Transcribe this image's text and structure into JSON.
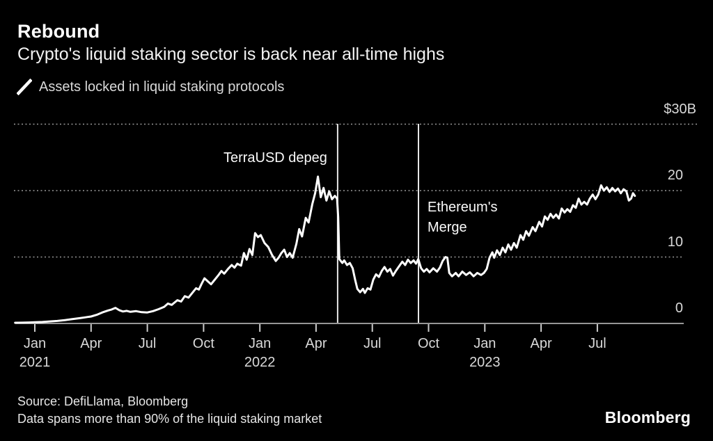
{
  "header": {
    "title": "Rebound",
    "subtitle": "Crypto's liquid staking sector is back near all-time highs",
    "legend": {
      "icon": "line-series-mark",
      "label": "Assets locked in liquid staking protocols"
    }
  },
  "footer": {
    "source_line": "Source: DefiLlama, Bloomberg",
    "note_line": "Data spans more than 90% of the liquid staking market",
    "brand": "Bloomberg"
  },
  "colors": {
    "background": "#000000",
    "text_primary": "#ffffff",
    "text_secondary": "#d9d9d9",
    "grid": "#9a9a9a",
    "axis": "#c8c8c8",
    "series_line": "#ffffff",
    "annotation_line": "#e8e8e8"
  },
  "chart_data": {
    "type": "line",
    "title": "Rebound",
    "subtitle": "Crypto's liquid staking sector is back near all-time highs",
    "x_unit": "months since Jan 2021",
    "ylabel": "Assets locked ($B)",
    "ylim": [
      0,
      30
    ],
    "xlim": [
      -1.05,
      34.6
    ],
    "grid": "horizontal-dotted",
    "legend_position": "top-left",
    "y_ticks": [
      {
        "value": 30,
        "label": "$30B"
      },
      {
        "value": 20,
        "label": "20"
      },
      {
        "value": 10,
        "label": "10"
      },
      {
        "value": 0,
        "label": "0"
      }
    ],
    "x_ticks": [
      {
        "m": 0,
        "label": "Jan",
        "year": "2021"
      },
      {
        "m": 3,
        "label": "Apr"
      },
      {
        "m": 6,
        "label": "Jul"
      },
      {
        "m": 9,
        "label": "Oct"
      },
      {
        "m": 12,
        "label": "Jan",
        "year": "2022"
      },
      {
        "m": 15,
        "label": "Apr"
      },
      {
        "m": 18,
        "label": "Jul"
      },
      {
        "m": 21,
        "label": "Oct"
      },
      {
        "m": 24,
        "label": "Jan",
        "year": "2023"
      },
      {
        "m": 27,
        "label": "Apr"
      },
      {
        "m": 30,
        "label": "Jul"
      }
    ],
    "annotations": [
      {
        "type": "vline",
        "m": 16.15,
        "label_lines": [
          "TerraUSD depeg"
        ],
        "side": "left",
        "label_top": 213
      },
      {
        "type": "vline",
        "m": 20.46,
        "label_lines": [
          "Ethereum's",
          "Merge"
        ],
        "side": "right",
        "label_top": 284
      }
    ],
    "series": [
      {
        "name": "Assets locked in liquid staking protocols",
        "color": "#ffffff",
        "points": [
          [
            -1.05,
            0.1
          ],
          [
            -0.7,
            0.12
          ],
          [
            -0.3,
            0.15
          ],
          [
            0,
            0.18
          ],
          [
            0.4,
            0.22
          ],
          [
            0.8,
            0.3
          ],
          [
            1.2,
            0.38
          ],
          [
            1.6,
            0.5
          ],
          [
            2,
            0.65
          ],
          [
            2.4,
            0.8
          ],
          [
            2.7,
            0.92
          ],
          [
            3,
            1.05
          ],
          [
            3.3,
            1.3
          ],
          [
            3.6,
            1.65
          ],
          [
            3.9,
            1.95
          ],
          [
            4.1,
            2.1
          ],
          [
            4.3,
            2.35
          ],
          [
            4.5,
            2.0
          ],
          [
            4.7,
            1.8
          ],
          [
            4.9,
            1.9
          ],
          [
            5.1,
            1.75
          ],
          [
            5.4,
            1.85
          ],
          [
            5.7,
            1.7
          ],
          [
            6,
            1.65
          ],
          [
            6.3,
            1.85
          ],
          [
            6.6,
            2.15
          ],
          [
            6.9,
            2.5
          ],
          [
            7.1,
            3.0
          ],
          [
            7.3,
            2.8
          ],
          [
            7.6,
            3.5
          ],
          [
            7.8,
            3.3
          ],
          [
            8,
            4.1
          ],
          [
            8.2,
            3.9
          ],
          [
            8.4,
            4.6
          ],
          [
            8.6,
            5.3
          ],
          [
            8.75,
            5.1
          ],
          [
            8.9,
            6.0
          ],
          [
            9.05,
            6.8
          ],
          [
            9.2,
            6.4
          ],
          [
            9.4,
            5.9
          ],
          [
            9.6,
            6.6
          ],
          [
            9.8,
            7.3
          ],
          [
            9.95,
            7.9
          ],
          [
            10.1,
            7.5
          ],
          [
            10.3,
            8.2
          ],
          [
            10.5,
            8.8
          ],
          [
            10.65,
            8.4
          ],
          [
            10.8,
            9.0
          ],
          [
            11,
            8.7
          ],
          [
            11.15,
            10.6
          ],
          [
            11.3,
            9.6
          ],
          [
            11.45,
            11.2
          ],
          [
            11.6,
            10.3
          ],
          [
            11.75,
            13.6
          ],
          [
            11.9,
            13.0
          ],
          [
            12.05,
            13.3
          ],
          [
            12.25,
            12.1
          ],
          [
            12.45,
            11.5
          ],
          [
            12.65,
            10.3
          ],
          [
            12.85,
            9.4
          ],
          [
            13,
            9.9
          ],
          [
            13.15,
            10.6
          ],
          [
            13.3,
            11.1
          ],
          [
            13.45,
            10.0
          ],
          [
            13.6,
            10.6
          ],
          [
            13.75,
            9.9
          ],
          [
            13.95,
            12.0
          ],
          [
            14.1,
            14.2
          ],
          [
            14.25,
            13.1
          ],
          [
            14.45,
            15.9
          ],
          [
            14.6,
            15.2
          ],
          [
            14.8,
            18.0
          ],
          [
            14.95,
            19.6
          ],
          [
            15.1,
            22.1
          ],
          [
            15.25,
            19.0
          ],
          [
            15.4,
            20.4
          ],
          [
            15.55,
            18.5
          ],
          [
            15.7,
            19.9
          ],
          [
            15.85,
            18.7
          ],
          [
            16,
            19.2
          ],
          [
            16.12,
            18.8
          ],
          [
            16.18,
            16.0
          ],
          [
            16.24,
            9.7
          ],
          [
            16.4,
            9.1
          ],
          [
            16.5,
            9.5
          ],
          [
            16.65,
            8.8
          ],
          [
            16.8,
            9.1
          ],
          [
            16.95,
            8.3
          ],
          [
            17.08,
            6.6
          ],
          [
            17.2,
            5.2
          ],
          [
            17.35,
            4.7
          ],
          [
            17.5,
            5.2
          ],
          [
            17.6,
            4.6
          ],
          [
            17.75,
            5.3
          ],
          [
            17.9,
            5.1
          ],
          [
            18.05,
            6.6
          ],
          [
            18.2,
            7.4
          ],
          [
            18.35,
            7.0
          ],
          [
            18.5,
            7.9
          ],
          [
            18.65,
            8.5
          ],
          [
            18.8,
            7.8
          ],
          [
            18.95,
            8.2
          ],
          [
            19.1,
            7.2
          ],
          [
            19.25,
            7.9
          ],
          [
            19.45,
            8.7
          ],
          [
            19.6,
            9.3
          ],
          [
            19.75,
            8.8
          ],
          [
            19.9,
            9.6
          ],
          [
            20.05,
            9.1
          ],
          [
            20.2,
            9.5
          ],
          [
            20.33,
            9.0
          ],
          [
            20.45,
            9.7
          ],
          [
            20.6,
            8.3
          ],
          [
            20.75,
            7.8
          ],
          [
            20.9,
            8.2
          ],
          [
            21.05,
            7.7
          ],
          [
            21.25,
            8.3
          ],
          [
            21.45,
            7.8
          ],
          [
            21.6,
            8.4
          ],
          [
            21.75,
            9.4
          ],
          [
            21.9,
            10.0
          ],
          [
            22,
            9.9
          ],
          [
            22.1,
            7.6
          ],
          [
            22.25,
            7.1
          ],
          [
            22.45,
            7.6
          ],
          [
            22.6,
            7.1
          ],
          [
            22.8,
            7.8
          ],
          [
            23,
            7.3
          ],
          [
            23.2,
            7.7
          ],
          [
            23.4,
            7.1
          ],
          [
            23.6,
            7.6
          ],
          [
            23.8,
            7.3
          ],
          [
            23.95,
            7.6
          ],
          [
            24.1,
            8.2
          ],
          [
            24.25,
            9.9
          ],
          [
            24.4,
            10.7
          ],
          [
            24.5,
            9.9
          ],
          [
            24.65,
            11.0
          ],
          [
            24.8,
            10.3
          ],
          [
            24.95,
            11.4
          ],
          [
            25.1,
            10.7
          ],
          [
            25.25,
            11.9
          ],
          [
            25.4,
            11.1
          ],
          [
            25.55,
            12.1
          ],
          [
            25.7,
            11.4
          ],
          [
            25.9,
            13.3
          ],
          [
            26.05,
            12.6
          ],
          [
            26.2,
            13.9
          ],
          [
            26.35,
            13.2
          ],
          [
            26.55,
            14.5
          ],
          [
            26.7,
            13.9
          ],
          [
            26.9,
            15.3
          ],
          [
            27.05,
            14.6
          ],
          [
            27.2,
            16.1
          ],
          [
            27.35,
            15.6
          ],
          [
            27.5,
            16.5
          ],
          [
            27.65,
            15.9
          ],
          [
            27.8,
            16.4
          ],
          [
            27.95,
            15.8
          ],
          [
            28.1,
            17.3
          ],
          [
            28.25,
            16.7
          ],
          [
            28.4,
            17.2
          ],
          [
            28.55,
            16.8
          ],
          [
            28.7,
            17.8
          ],
          [
            28.85,
            17.4
          ],
          [
            29,
            18.8
          ],
          [
            29.15,
            17.9
          ],
          [
            29.3,
            18.3
          ],
          [
            29.45,
            17.9
          ],
          [
            29.6,
            18.8
          ],
          [
            29.75,
            19.4
          ],
          [
            29.9,
            18.7
          ],
          [
            30.05,
            19.4
          ],
          [
            30.2,
            20.8
          ],
          [
            30.35,
            20.0
          ],
          [
            30.5,
            20.5
          ],
          [
            30.65,
            19.8
          ],
          [
            30.8,
            20.4
          ],
          [
            30.95,
            19.9
          ],
          [
            31.1,
            20.3
          ],
          [
            31.25,
            19.6
          ],
          [
            31.4,
            20.2
          ],
          [
            31.55,
            19.9
          ],
          [
            31.68,
            18.5
          ],
          [
            31.8,
            18.8
          ],
          [
            31.9,
            19.6
          ],
          [
            32,
            19.2
          ]
        ]
      }
    ]
  }
}
